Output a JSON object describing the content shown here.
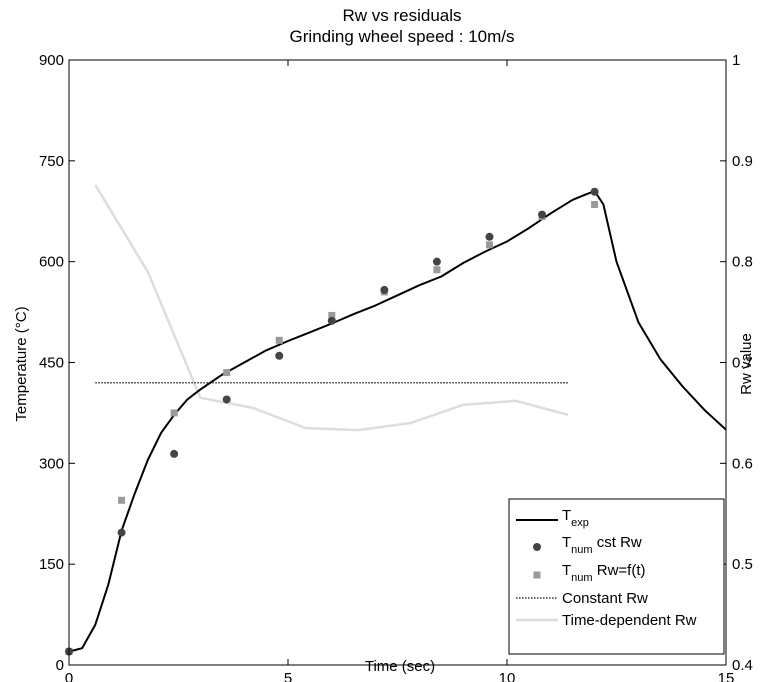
{
  "chart_data": {
    "type": "line",
    "title": "Rw vs residuals",
    "subtitle": "Grinding wheel speed : 10m/s",
    "xlabel": "Time (sec)",
    "ylabel": "Temperature (°C)",
    "y2label": "Rw value",
    "xlim": [
      0,
      15
    ],
    "ylim": [
      0,
      900
    ],
    "y2lim": [
      0.4,
      1
    ],
    "xticks": [
      "0",
      "5",
      "10",
      "15"
    ],
    "yticks": [
      "0",
      "150",
      "300",
      "450",
      "600",
      "750",
      "900"
    ],
    "y2ticks": [
      "0.4",
      "0.5",
      "0.6",
      "0.7",
      "0.8",
      "0.9",
      "1"
    ],
    "grid": false,
    "legend_position": "bottom-right",
    "series": [
      {
        "name": "T_exp",
        "legend_main": "T",
        "legend_sub": "exp",
        "legend_suffix": "",
        "kind": "line",
        "axis": "left",
        "color": "#000000",
        "x": [
          0,
          0.3,
          0.6,
          0.9,
          1.2,
          1.5,
          1.8,
          2.1,
          2.4,
          2.7,
          3.0,
          3.5,
          4.0,
          4.5,
          5.0,
          5.5,
          6.0,
          6.5,
          7.0,
          7.5,
          8.0,
          8.5,
          9.0,
          9.5,
          10.0,
          10.5,
          11.0,
          11.5,
          11.8,
          12.0,
          12.2,
          12.5,
          13.0,
          13.5,
          14.0,
          14.5,
          15.0
        ],
        "y": [
          20,
          25,
          60,
          120,
          200,
          255,
          305,
          345,
          372,
          395,
          410,
          432,
          450,
          468,
          482,
          495,
          508,
          522,
          535,
          550,
          565,
          578,
          598,
          615,
          630,
          650,
          672,
          692,
          700,
          705,
          685,
          600,
          510,
          455,
          415,
          380,
          350
        ]
      },
      {
        "name": "T_num cst Rw",
        "legend_main": "T",
        "legend_sub": "num",
        "legend_suffix": " cst Rw",
        "kind": "scatter",
        "marker": "circle",
        "axis": "left",
        "color": "#444444",
        "x": [
          0,
          1.2,
          2.4,
          3.6,
          4.8,
          6.0,
          7.2,
          8.4,
          9.6,
          10.8,
          12.0
        ],
        "y": [
          20,
          197,
          314,
          395,
          460,
          512,
          558,
          600,
          637,
          670,
          704
        ]
      },
      {
        "name": "T_num Rw=f(t)",
        "legend_main": "T",
        "legend_sub": "num",
        "legend_suffix": " Rw=f(t)",
        "kind": "scatter",
        "marker": "square",
        "axis": "left",
        "color": "#9a9a9a",
        "x": [
          0,
          1.2,
          2.4,
          3.6,
          4.8,
          6.0,
          7.2,
          8.4,
          9.6,
          10.8,
          12.0
        ],
        "y": [
          20,
          245,
          375,
          435,
          483,
          520,
          555,
          588,
          625,
          667,
          685
        ]
      },
      {
        "name": "Constant Rw",
        "legend_main": "Constant Rw",
        "legend_sub": "",
        "legend_suffix": "",
        "kind": "line",
        "style": "dotted",
        "axis": "right",
        "color": "#333333",
        "x": [
          0.6,
          11.4
        ],
        "y": [
          0.68,
          0.68
        ]
      },
      {
        "name": "Time-dependent Rw",
        "legend_main": "Time-dependent Rw",
        "legend_sub": "",
        "legend_suffix": "",
        "kind": "line",
        "axis": "right",
        "color": "#dddddd",
        "x": [
          0.6,
          1.8,
          3.0,
          4.2,
          5.4,
          6.6,
          7.8,
          9.0,
          10.2,
          11.4
        ],
        "y": [
          0.876,
          0.79,
          0.665,
          0.655,
          0.635,
          0.633,
          0.64,
          0.658,
          0.662,
          0.648
        ]
      }
    ]
  }
}
